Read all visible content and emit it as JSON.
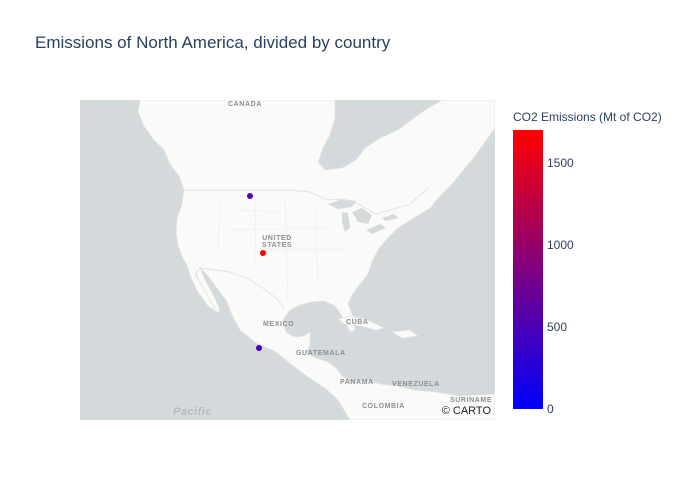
{
  "title": "Emissions of North America, divided by country",
  "map": {
    "basemap": "carto-positron",
    "attribution": "© CARTO",
    "labels": {
      "canada": "CANADA",
      "united_states": "UNITED\nSTATES",
      "mexico": "MEXICO",
      "cuba": "CUBA",
      "guatemala": "GUATEMALA",
      "panama": "PANAMA",
      "venezuela": "VENEZUELA",
      "colombia": "COLOMBIA",
      "suriname": "SURINAME",
      "pacific": "Pacific"
    }
  },
  "chart_data": {
    "type": "scatter",
    "marker_color_scale": [
      "#0000ff",
      "#ff0000"
    ],
    "color_range": [
      0,
      1700
    ],
    "colorbar_title": "CO2 Emissions (Mt of CO2)",
    "colorbar_ticks": [
      0,
      500,
      1000,
      1500
    ],
    "points": [
      {
        "country": "Canada",
        "lat": 49,
        "lon": -101,
        "co2": 600
      },
      {
        "country": "United States",
        "lat": 39,
        "lon": -98,
        "co2": 1700
      },
      {
        "country": "Mexico",
        "lat": 19,
        "lon": -99,
        "co2": 470
      }
    ]
  }
}
